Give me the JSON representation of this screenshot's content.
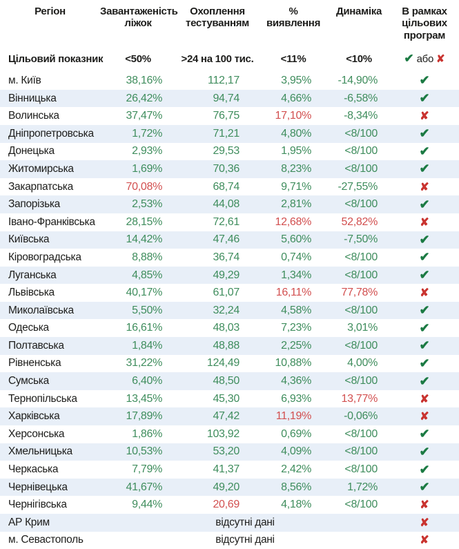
{
  "colors": {
    "value_green": "#3f8d5d",
    "value_red": "#d24f4f",
    "check_green": "#1b7a43",
    "cross_red": "#c9332f",
    "row_alt_blue": "#e8eff8",
    "text_dark": "#1d1d1b"
  },
  "icons": {
    "check": "✔",
    "cross": "✘"
  },
  "chart_data": {
    "type": "table",
    "columns": [
      "Регіон",
      "Завантаженість\nліжок",
      "Охоплення\nтестуванням",
      "%\nвиявлення",
      "Динаміка",
      "В рамках\nцільових\nпрограм"
    ],
    "target_row": {
      "label": "Цільовий показник",
      "values": [
        "<50%",
        ">24 на 100 тис.",
        "<11%",
        "<10%"
      ],
      "or_label": "або"
    },
    "no_data_label": "відсутні дані",
    "rows": [
      {
        "region": "м. Київ",
        "cells": [
          [
            "38,16%",
            "g"
          ],
          [
            "112,17",
            "g"
          ],
          [
            "3,95%",
            "g"
          ],
          [
            "-14,90%",
            "g"
          ]
        ],
        "program": "check"
      },
      {
        "region": "Вінницька",
        "cells": [
          [
            "26,42%",
            "g"
          ],
          [
            "94,74",
            "g"
          ],
          [
            "4,66%",
            "g"
          ],
          [
            "-6,58%",
            "g"
          ]
        ],
        "program": "check"
      },
      {
        "region": "Волинська",
        "cells": [
          [
            "37,47%",
            "g"
          ],
          [
            "76,75",
            "g"
          ],
          [
            "17,10%",
            "r"
          ],
          [
            "-8,34%",
            "g"
          ]
        ],
        "program": "cross"
      },
      {
        "region": "Дніпропетровська",
        "cells": [
          [
            "1,72%",
            "g"
          ],
          [
            "71,21",
            "g"
          ],
          [
            "4,80%",
            "g"
          ],
          [
            "<8/100",
            "g"
          ]
        ],
        "program": "check"
      },
      {
        "region": "Донецька",
        "cells": [
          [
            "2,93%",
            "g"
          ],
          [
            "29,53",
            "g"
          ],
          [
            "1,95%",
            "g"
          ],
          [
            "<8/100",
            "g"
          ]
        ],
        "program": "check"
      },
      {
        "region": "Житомирська",
        "cells": [
          [
            "1,69%",
            "g"
          ],
          [
            "70,36",
            "g"
          ],
          [
            "8,23%",
            "g"
          ],
          [
            "<8/100",
            "g"
          ]
        ],
        "program": "check"
      },
      {
        "region": "Закарпатська",
        "cells": [
          [
            "70,08%",
            "r"
          ],
          [
            "68,74",
            "g"
          ],
          [
            "9,71%",
            "g"
          ],
          [
            "-27,55%",
            "g"
          ]
        ],
        "program": "cross"
      },
      {
        "region": "Запорізька",
        "cells": [
          [
            "2,53%",
            "g"
          ],
          [
            "44,08",
            "g"
          ],
          [
            "2,81%",
            "g"
          ],
          [
            "<8/100",
            "g"
          ]
        ],
        "program": "check"
      },
      {
        "region": "Івано-Франківська",
        "cells": [
          [
            "28,15%",
            "g"
          ],
          [
            "72,61",
            "g"
          ],
          [
            "12,68%",
            "r"
          ],
          [
            "52,82%",
            "r"
          ]
        ],
        "program": "cross"
      },
      {
        "region": "Київська",
        "cells": [
          [
            "14,42%",
            "g"
          ],
          [
            "47,46",
            "g"
          ],
          [
            "5,60%",
            "g"
          ],
          [
            "-7,50%",
            "g"
          ]
        ],
        "program": "check"
      },
      {
        "region": "Кіровоградська",
        "cells": [
          [
            "8,88%",
            "g"
          ],
          [
            "36,74",
            "g"
          ],
          [
            "0,74%",
            "g"
          ],
          [
            "<8/100",
            "g"
          ]
        ],
        "program": "check"
      },
      {
        "region": "Луганська",
        "cells": [
          [
            "4,85%",
            "g"
          ],
          [
            "49,29",
            "g"
          ],
          [
            "1,34%",
            "g"
          ],
          [
            "<8/100",
            "g"
          ]
        ],
        "program": "check"
      },
      {
        "region": "Львівська",
        "cells": [
          [
            "40,17%",
            "g"
          ],
          [
            "61,07",
            "g"
          ],
          [
            "16,11%",
            "r"
          ],
          [
            "77,78%",
            "r"
          ]
        ],
        "program": "cross"
      },
      {
        "region": "Миколаївська",
        "cells": [
          [
            "5,50%",
            "g"
          ],
          [
            "32,24",
            "g"
          ],
          [
            "4,58%",
            "g"
          ],
          [
            "<8/100",
            "g"
          ]
        ],
        "program": "check"
      },
      {
        "region": "Одеська",
        "cells": [
          [
            "16,61%",
            "g"
          ],
          [
            "48,03",
            "g"
          ],
          [
            "7,23%",
            "g"
          ],
          [
            "3,01%",
            "g"
          ]
        ],
        "program": "check"
      },
      {
        "region": "Полтавська",
        "cells": [
          [
            "1,84%",
            "g"
          ],
          [
            "48,88",
            "g"
          ],
          [
            "2,25%",
            "g"
          ],
          [
            "<8/100",
            "g"
          ]
        ],
        "program": "check"
      },
      {
        "region": "Рівненська",
        "cells": [
          [
            "31,22%",
            "g"
          ],
          [
            "124,49",
            "g"
          ],
          [
            "10,88%",
            "g"
          ],
          [
            "4,00%",
            "g"
          ]
        ],
        "program": "check"
      },
      {
        "region": "Сумська",
        "cells": [
          [
            "6,40%",
            "g"
          ],
          [
            "48,50",
            "g"
          ],
          [
            "4,36%",
            "g"
          ],
          [
            "<8/100",
            "g"
          ]
        ],
        "program": "check"
      },
      {
        "region": "Тернопільська",
        "cells": [
          [
            "13,45%",
            "g"
          ],
          [
            "45,30",
            "g"
          ],
          [
            "6,93%",
            "g"
          ],
          [
            "13,77%",
            "r"
          ]
        ],
        "program": "cross"
      },
      {
        "region": "Харківська",
        "cells": [
          [
            "17,89%",
            "g"
          ],
          [
            "47,42",
            "g"
          ],
          [
            "11,19%",
            "r"
          ],
          [
            "-0,06%",
            "g"
          ]
        ],
        "program": "cross"
      },
      {
        "region": "Херсонська",
        "cells": [
          [
            "1,86%",
            "g"
          ],
          [
            "103,92",
            "g"
          ],
          [
            "0,69%",
            "g"
          ],
          [
            "<8/100",
            "g"
          ]
        ],
        "program": "check"
      },
      {
        "region": "Хмельницька",
        "cells": [
          [
            "10,53%",
            "g"
          ],
          [
            "53,20",
            "g"
          ],
          [
            "4,09%",
            "g"
          ],
          [
            "<8/100",
            "g"
          ]
        ],
        "program": "check"
      },
      {
        "region": "Черкаська",
        "cells": [
          [
            "7,79%",
            "g"
          ],
          [
            "41,37",
            "g"
          ],
          [
            "2,42%",
            "g"
          ],
          [
            "<8/100",
            "g"
          ]
        ],
        "program": "check"
      },
      {
        "region": "Чернівецька",
        "cells": [
          [
            "41,67%",
            "g"
          ],
          [
            "49,20",
            "g"
          ],
          [
            "8,56%",
            "g"
          ],
          [
            "1,72%",
            "g"
          ]
        ],
        "program": "check"
      },
      {
        "region": "Чернігівська",
        "cells": [
          [
            "9,44%",
            "g"
          ],
          [
            "20,69",
            "r"
          ],
          [
            "4,18%",
            "g"
          ],
          [
            "<8/100",
            "g"
          ]
        ],
        "program": "cross"
      },
      {
        "region": "АР Крим",
        "no_data": true,
        "program": "cross"
      },
      {
        "region": "м. Севастополь",
        "no_data": true,
        "program": "cross"
      }
    ]
  }
}
